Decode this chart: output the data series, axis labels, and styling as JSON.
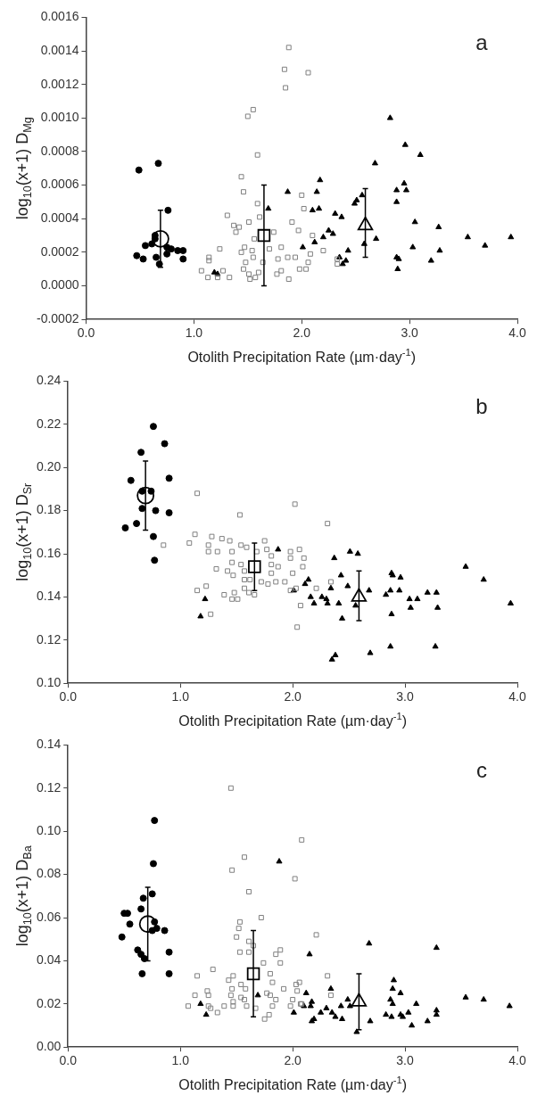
{
  "chart_data": [
    {
      "type": "scatter",
      "ylabel": "log$_{10}$(x+1) D$_{Mg}$",
      "xlabel": "Otolith Precipitation Rate (µm·day$^{-1}$)",
      "annotations": [
        "a"
      ],
      "xlim": [
        0,
        4
      ],
      "xticks": [
        {
          "value": 0,
          "label": "0.0"
        },
        {
          "value": 1,
          "label": "1.0"
        },
        {
          "value": 2,
          "label": "2.0"
        },
        {
          "value": 3,
          "label": "3.0"
        },
        {
          "value": 4,
          "label": "4.0"
        }
      ],
      "ylim": [
        -0.0002,
        0.0016
      ],
      "yticks": [
        {
          "value": -0.0002,
          "label": "-0.0002"
        },
        {
          "value": 0,
          "label": "0.0000"
        },
        {
          "value": 0.0002,
          "label": "0.0002"
        },
        {
          "value": 0.0004,
          "label": "0.0004"
        },
        {
          "value": 0.0006,
          "label": "0.0006"
        },
        {
          "value": 0.0008,
          "label": "0.0008"
        },
        {
          "value": 0.001,
          "label": "0.0010"
        },
        {
          "value": 0.0012,
          "label": "0.0012"
        },
        {
          "value": 0.0014,
          "label": "0.0014"
        },
        {
          "value": 0.0016,
          "label": "0.0016"
        }
      ],
      "series": [
        {
          "color": "#000000",
          "marker": "circle",
          "x": [
            0.49,
            0.67,
            0.76,
            0.47,
            0.53,
            0.55,
            0.61,
            0.64,
            0.64,
            0.65,
            0.68,
            0.75,
            0.75,
            0.79,
            0.85,
            0.9,
            0.9
          ],
          "values": [
            0.00069,
            0.00073,
            0.00045,
            0.00018,
            0.00016,
            0.00024,
            0.00025,
            0.00028,
            0.0003,
            0.00017,
            0.00013,
            0.00023,
            0.00019,
            0.00022,
            0.00021,
            0.00021,
            0.00016
          ]
        },
        {
          "color": "#808080",
          "marker": "square",
          "x": [
            1.88,
            1.84,
            2.06,
            1.85,
            1.5,
            1.55,
            1.59,
            1.44,
            1.46,
            1.59,
            2.0,
            2.02,
            1.31,
            1.37,
            1.42,
            1.39,
            1.61,
            1.51,
            1.91,
            1.97,
            2.1,
            1.74,
            1.24,
            1.14,
            1.14,
            1.07,
            1.13,
            1.27,
            1.22,
            1.33,
            1.47,
            1.44,
            1.48,
            1.46,
            1.51,
            1.52,
            1.54,
            1.56,
            1.6,
            1.57,
            1.7,
            1.81,
            1.78,
            1.87,
            1.81,
            1.77,
            1.88,
            1.94,
            1.98,
            2.04,
            2.06,
            2.08,
            2.2,
            2.33,
            2.33,
            1.64,
            1.55
          ],
          "values": [
            0.00142,
            0.00129,
            0.00127,
            0.00118,
            0.00101,
            0.00105,
            0.00078,
            0.00065,
            0.00056,
            0.00049,
            0.00054,
            0.00046,
            0.00042,
            0.00036,
            0.00035,
            0.00032,
            0.00041,
            0.00038,
            0.00038,
            0.00033,
            0.0003,
            0.00032,
            0.00022,
            0.00017,
            0.00015,
            9e-05,
            5e-05,
            9e-05,
            5e-05,
            5e-05,
            0.00023,
            0.0002,
            0.00014,
            0.0001,
            7e-05,
            4e-05,
            0.00021,
            0.00028,
            8e-05,
            5e-05,
            0.00022,
            0.00023,
            0.00016,
            0.00017,
            9e-05,
            7e-05,
            4e-05,
            0.00017,
            0.0001,
            0.0001,
            0.00014,
            0.00019,
            0.00021,
            0.00016,
            0.00013,
            0.00014,
            0.00017
          ]
        },
        {
          "color": "#000000",
          "marker": "triangle",
          "x": [
            2.82,
            2.96,
            3.1,
            2.68,
            2.17,
            1.87,
            2.14,
            2.88,
            2.95,
            2.97,
            2.88,
            1.69,
            2.1,
            2.16,
            2.56,
            2.49,
            2.51,
            2.31,
            2.37,
            2.25,
            2.29,
            2.2,
            2.12,
            2.69,
            2.01,
            3.05,
            3.27,
            3.03,
            3.28,
            3.2,
            2.88,
            2.9,
            2.89,
            3.54,
            3.7,
            3.94,
            2.35,
            2.43,
            2.38,
            2.41,
            2.58,
            1.19,
            1.22
          ],
          "values": [
            0.001,
            0.00084,
            0.00078,
            0.00073,
            0.00063,
            0.00056,
            0.00056,
            0.00057,
            0.00061,
            0.00057,
            0.0005,
            0.00046,
            0.00045,
            0.00046,
            0.00054,
            0.00049,
            0.00051,
            0.00043,
            0.00041,
            0.00033,
            0.00031,
            0.00029,
            0.00026,
            0.00028,
            0.00023,
            0.00038,
            0.00035,
            0.00023,
            0.00021,
            0.00015,
            0.00017,
            0.00016,
            0.0001,
            0.00029,
            0.00024,
            0.00029,
            0.00017,
            0.00021,
            0.00013,
            0.00015,
            0.00025,
            8e-05,
            7e-05
          ]
        },
        {
          "color": "#000000",
          "marker": "circle",
          "x": [
            0.69
          ],
          "values": [
            0.00028
          ],
          "errors": [
            0.00017
          ]
        },
        {
          "color": "#000000",
          "marker": "square",
          "x": [
            1.65
          ],
          "values": [
            0.0003
          ],
          "errors": [
            0.0003
          ]
        },
        {
          "color": "#000000",
          "marker": "triangle",
          "x": [
            2.59
          ],
          "values": [
            0.00036
          ],
          "errors": [
            [
              0.00017,
              0.00058
            ]
          ]
        }
      ]
    },
    {
      "type": "scatter",
      "ylabel": "log$_{10}$(x+1) D$_{Sr}$",
      "xlabel": "Otolith Precipitation Rate (µm·day$^{-1}$)",
      "annotations": [
        "b"
      ],
      "xlim": [
        0,
        4
      ],
      "xticks": [
        {
          "value": 0,
          "label": "0.0"
        },
        {
          "value": 1,
          "label": "1.0"
        },
        {
          "value": 2,
          "label": "2.0"
        },
        {
          "value": 3,
          "label": "3.0"
        },
        {
          "value": 4,
          "label": "4.0"
        }
      ],
      "ylim": [
        0.1,
        0.24
      ],
      "yticks": [
        {
          "value": 0.1,
          "label": "0.10"
        },
        {
          "value": 0.12,
          "label": "0.12"
        },
        {
          "value": 0.14,
          "label": "0.14"
        },
        {
          "value": 0.16,
          "label": "0.16"
        },
        {
          "value": 0.18,
          "label": "0.18"
        },
        {
          "value": 0.2,
          "label": "0.20"
        },
        {
          "value": 0.22,
          "label": "0.22"
        },
        {
          "value": 0.24,
          "label": "0.24"
        }
      ],
      "series": [
        {
          "color": "#000000",
          "marker": "circle",
          "x": [
            0.76,
            0.86,
            0.65,
            0.56,
            0.9,
            0.66,
            0.74,
            0.66,
            0.78,
            0.9,
            0.51,
            0.61,
            0.76,
            0.77
          ],
          "values": [
            0.219,
            0.211,
            0.207,
            0.194,
            0.195,
            0.189,
            0.189,
            0.181,
            0.18,
            0.179,
            0.172,
            0.174,
            0.168,
            0.157
          ]
        },
        {
          "color": "#808080",
          "marker": "square",
          "x": [
            1.15,
            1.53,
            2.02,
            2.31,
            0.85,
            1.08,
            1.13,
            1.25,
            1.28,
            1.37,
            1.44,
            1.25,
            1.33,
            1.46,
            1.54,
            1.59,
            1.75,
            1.77,
            1.68,
            1.81,
            1.98,
            2.06,
            1.98,
            2.1,
            1.32,
            1.42,
            1.46,
            1.47,
            1.54,
            1.57,
            1.57,
            1.62,
            1.72,
            1.81,
            1.87,
            1.81,
            1.85,
            1.93,
            2.0,
            2.09,
            1.15,
            1.23,
            1.27,
            1.39,
            1.48,
            1.46,
            1.51,
            1.57,
            1.61,
            1.66,
            1.78,
            1.98,
            2.03,
            2.07,
            2.04,
            2.21,
            2.34
          ],
          "values": [
            0.188,
            0.178,
            0.183,
            0.174,
            0.164,
            0.165,
            0.169,
            0.164,
            0.168,
            0.167,
            0.166,
            0.161,
            0.161,
            0.161,
            0.164,
            0.163,
            0.166,
            0.162,
            0.161,
            0.159,
            0.161,
            0.162,
            0.158,
            0.158,
            0.153,
            0.152,
            0.156,
            0.15,
            0.155,
            0.152,
            0.148,
            0.148,
            0.147,
            0.155,
            0.154,
            0.151,
            0.147,
            0.147,
            0.151,
            0.154,
            0.143,
            0.145,
            0.132,
            0.141,
            0.142,
            0.139,
            0.139,
            0.144,
            0.142,
            0.141,
            0.146,
            0.143,
            0.144,
            0.136,
            0.126,
            0.144,
            0.147
          ]
        },
        {
          "color": "#000000",
          "marker": "triangle",
          "x": [
            1.18,
            1.22,
            1.87,
            2.01,
            2.14,
            2.11,
            2.16,
            2.18,
            2.19,
            2.26,
            2.3,
            2.31,
            2.34,
            2.37,
            2.41,
            2.43,
            2.44,
            2.49,
            2.51,
            2.58,
            2.56,
            2.35,
            2.38,
            2.69,
            2.68,
            2.83,
            2.87,
            2.88,
            2.87,
            2.88,
            2.89,
            2.96,
            2.95,
            3.04,
            3.05,
            3.11,
            3.2,
            3.28,
            3.29,
            3.27,
            3.54,
            3.7,
            3.94
          ],
          "values": [
            0.131,
            0.139,
            0.162,
            0.143,
            0.148,
            0.146,
            0.14,
            null,
            0.137,
            0.14,
            0.139,
            0.137,
            0.144,
            0.158,
            0.137,
            0.15,
            0.13,
            0.145,
            0.161,
            0.16,
            0.136,
            0.111,
            0.113,
            0.114,
            0.143,
            0.141,
            0.143,
            0.132,
            0.117,
            0.151,
            0.15,
            0.149,
            0.143,
            0.139,
            0.135,
            0.139,
            0.142,
            0.142,
            0.135,
            0.117,
            0.154,
            0.148,
            0.137
          ]
        },
        {
          "color": "#000000",
          "marker": "circle",
          "x": [
            0.69
          ],
          "values": [
            0.187
          ],
          "errors": [
            0.016
          ]
        },
        {
          "color": "#000000",
          "marker": "square",
          "x": [
            1.66
          ],
          "values": [
            0.154
          ],
          "errors": [
            0.011
          ]
        },
        {
          "color": "#000000",
          "marker": "triangle",
          "x": [
            2.59
          ],
          "values": [
            0.14
          ],
          "errors": [
            [
              0.129,
              0.152
            ]
          ]
        }
      ]
    },
    {
      "type": "scatter",
      "ylabel": "log$_{10}$(x+1) D$_{Ba}$",
      "xlabel": "Otolith Precipitation Rate (µm·day$^{-1}$)",
      "annotations": [
        "c"
      ],
      "xlim": [
        0,
        4
      ],
      "xticks": [
        {
          "value": 0,
          "label": "0.0"
        },
        {
          "value": 1,
          "label": "1.0"
        },
        {
          "value": 2,
          "label": "2.0"
        },
        {
          "value": 3,
          "label": "3.0"
        },
        {
          "value": 4,
          "label": "4.0"
        }
      ],
      "ylim": [
        0,
        0.14
      ],
      "yticks": [
        {
          "value": 0,
          "label": "0.00"
        },
        {
          "value": 0.02,
          "label": "0.02"
        },
        {
          "value": 0.04,
          "label": "0.04"
        },
        {
          "value": 0.06,
          "label": "0.06"
        },
        {
          "value": 0.08,
          "label": "0.08"
        },
        {
          "value": 0.1,
          "label": "0.10"
        },
        {
          "value": 0.12,
          "label": "0.12"
        },
        {
          "value": 0.14,
          "label": "0.14"
        }
      ],
      "series": [
        {
          "color": "#000000",
          "marker": "circle",
          "x": [
            0.77,
            0.76,
            0.75,
            0.67,
            0.65,
            0.5,
            0.53,
            0.55,
            0.48,
            0.77,
            0.79,
            0.75,
            0.86,
            0.9,
            0.62,
            0.65,
            0.68,
            0.66,
            0.9
          ],
          "values": [
            0.105,
            0.085,
            0.071,
            0.069,
            0.064,
            0.062,
            0.062,
            0.057,
            0.051,
            0.058,
            0.055,
            0.054,
            0.054,
            0.044,
            0.045,
            0.043,
            0.041,
            0.034,
            0.034
          ]
        },
        {
          "color": "#808080",
          "marker": "square",
          "x": [
            1.45,
            2.08,
            1.57,
            1.46,
            2.02,
            1.61,
            1.72,
            2.21,
            1.53,
            1.52,
            1.5,
            1.61,
            1.65,
            1.53,
            1.61,
            1.89,
            1.85,
            1.89,
            1.74,
            1.29,
            1.15,
            1.8,
            2.31,
            1.43,
            1.47,
            1.82,
            2.06,
            2.03,
            1.46,
            1.54,
            1.58,
            1.92,
            2.04,
            1.13,
            1.24,
            1.25,
            1.45,
            1.77,
            1.8,
            2.34,
            1.54,
            1.57,
            1.85,
            2.0,
            1.47,
            1.07,
            1.25,
            1.82,
            1.98,
            2.08,
            2.07,
            1.67,
            1.59,
            1.47,
            1.39,
            1.27,
            1.33,
            1.79,
            1.75
          ],
          "values": [
            0.12,
            0.096,
            0.088,
            0.082,
            0.078,
            0.072,
            0.06,
            0.052,
            0.058,
            0.055,
            0.051,
            0.049,
            0.047,
            0.044,
            0.044,
            0.045,
            0.043,
            0.039,
            0.039,
            0.036,
            0.033,
            0.034,
            0.033,
            0.031,
            0.033,
            0.03,
            0.03,
            0.029,
            0.027,
            0.029,
            0.027,
            0.027,
            0.026,
            0.024,
            0.026,
            0.024,
            0.024,
            0.025,
            0.024,
            0.024,
            0.023,
            0.022,
            0.022,
            0.022,
            0.021,
            0.019,
            0.019,
            0.019,
            0.019,
            0.02,
            0.02,
            0.018,
            0.019,
            0.019,
            0.019,
            0.018,
            0.016,
            0.015,
            0.013
          ]
        },
        {
          "color": "#000000",
          "marker": "triangle",
          "x": [
            1.88,
            2.68,
            3.28,
            2.15,
            2.9,
            2.89,
            2.96,
            2.34,
            2.12,
            1.69,
            3.54,
            3.7,
            3.93,
            2.87,
            2.89,
            3.1,
            1.18,
            1.23,
            2.01,
            2.1,
            2.16,
            2.17,
            2.3,
            2.35,
            2.43,
            2.49,
            2.51,
            2.38,
            2.44,
            2.19,
            2.17,
            2.25,
            2.83,
            2.88,
            2.96,
            2.98,
            3.03,
            3.06,
            3.2,
            3.28,
            3.28,
            2.69,
            2.57
          ],
          "values": [
            0.086,
            0.048,
            0.046,
            0.043,
            0.031,
            0.027,
            0.025,
            0.027,
            0.025,
            0.024,
            0.023,
            0.022,
            0.019,
            0.022,
            0.02,
            0.02,
            0.02,
            0.015,
            0.016,
            0.019,
            0.019,
            0.021,
            0.018,
            0.016,
            0.019,
            0.022,
            0.019,
            0.014,
            0.013,
            0.013,
            0.012,
            0.016,
            0.015,
            0.014,
            0.015,
            0.014,
            0.016,
            0.01,
            0.012,
            0.017,
            0.015,
            0.012,
            0.007
          ]
        },
        {
          "color": "#000000",
          "marker": "circle",
          "x": [
            0.71
          ],
          "values": [
            0.057
          ],
          "errors": [
            0.017
          ]
        },
        {
          "color": "#000000",
          "marker": "square",
          "x": [
            1.65
          ],
          "values": [
            0.034
          ],
          "errors": [
            0.02
          ]
        },
        {
          "color": "#000000",
          "marker": "triangle",
          "x": [
            2.59
          ],
          "values": [
            0.021
          ],
          "errors": [
            0.013
          ]
        }
      ]
    }
  ]
}
